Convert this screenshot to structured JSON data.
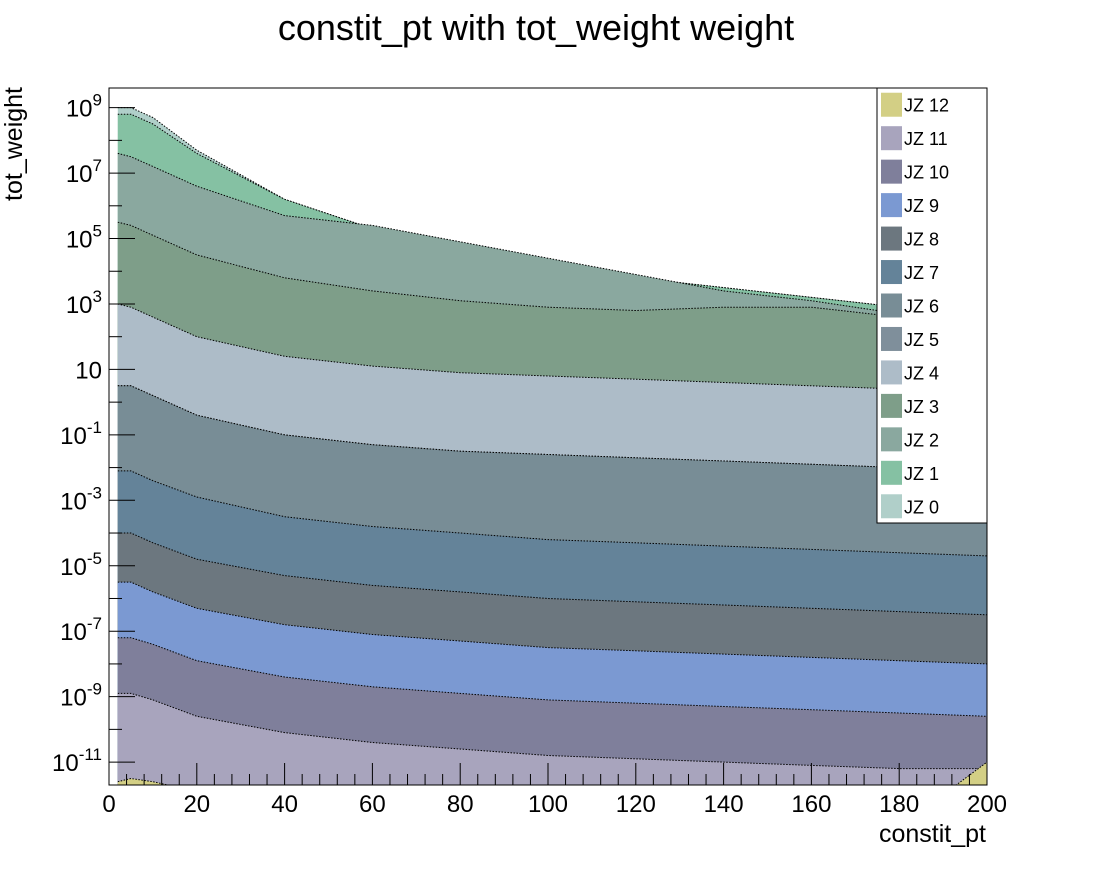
{
  "chart_data": {
    "type": "area",
    "title": "constit_pt with tot_weight weight",
    "xlabel": "constit_pt",
    "ylabel": "tot_weight",
    "xlim": [
      0,
      200
    ],
    "ylim_log10": [
      -11.7,
      9.6
    ],
    "y_scale": "log",
    "stacked": true,
    "grid": false,
    "legend_position": "top-right",
    "x_ticks": [
      0,
      20,
      40,
      60,
      80,
      100,
      120,
      140,
      160,
      180,
      200
    ],
    "y_ticks": [
      {
        "exp": 9,
        "label": "10^9"
      },
      {
        "exp": 7,
        "label": "10^7"
      },
      {
        "exp": 5,
        "label": "10^5"
      },
      {
        "exp": 3,
        "label": "10^3"
      },
      {
        "exp": 1,
        "label": "10"
      },
      {
        "exp": -1,
        "label": "10^-1"
      },
      {
        "exp": -3,
        "label": "10^-3"
      },
      {
        "exp": -5,
        "label": "10^-5"
      },
      {
        "exp": -7,
        "label": "10^-7"
      },
      {
        "exp": -9,
        "label": "10^-9"
      },
      {
        "exp": -11,
        "label": "10^-11"
      }
    ],
    "x": [
      2,
      5,
      10,
      20,
      40,
      60,
      80,
      100,
      120,
      140,
      160,
      180,
      200
    ],
    "series": [
      {
        "name": "JZ 12",
        "color": "#d3cf85",
        "log10_values": [
          -11.6,
          -11.5,
          -11.6,
          -11.9,
          -12.3,
          -12.5,
          -12.6,
          -12.7,
          -12.8,
          -12.9,
          -13.0,
          -13.0,
          -11.0
        ]
      },
      {
        "name": "JZ 11",
        "color": "#a8a4bd",
        "log10_values": [
          -8.9,
          -8.9,
          -9.1,
          -9.6,
          -10.1,
          -10.4,
          -10.6,
          -10.8,
          -10.9,
          -11.0,
          -11.1,
          -11.2,
          -11.2
        ]
      },
      {
        "name": "JZ 10",
        "color": "#7f7f9b",
        "log10_values": [
          -7.2,
          -7.2,
          -7.4,
          -7.9,
          -8.4,
          -8.7,
          -8.9,
          -9.1,
          -9.2,
          -9.3,
          -9.4,
          -9.5,
          -9.6
        ]
      },
      {
        "name": "JZ 9",
        "color": "#7b99d2",
        "log10_values": [
          -5.5,
          -5.5,
          -5.8,
          -6.3,
          -6.8,
          -7.1,
          -7.3,
          -7.5,
          -7.6,
          -7.7,
          -7.8,
          -7.9,
          -8.0
        ]
      },
      {
        "name": "JZ 8",
        "color": "#6c777f",
        "log10_values": [
          -4.0,
          -4.0,
          -4.3,
          -4.8,
          -5.3,
          -5.6,
          -5.8,
          -6.0,
          -6.1,
          -6.2,
          -6.3,
          -6.4,
          -6.5
        ]
      },
      {
        "name": "JZ 7",
        "color": "#648399",
        "log10_values": [
          -2.1,
          -2.1,
          -2.4,
          -2.9,
          -3.5,
          -3.8,
          -4.0,
          -4.2,
          -4.3,
          -4.4,
          -4.5,
          -4.6,
          -4.7
        ]
      },
      {
        "name": "JZ 6",
        "color": "#788d96",
        "log10_values": [
          0.5,
          0.5,
          0.2,
          -0.4,
          -1.0,
          -1.3,
          -1.5,
          -1.6,
          -1.7,
          -1.8,
          -1.9,
          -2.0,
          -2.0
        ]
      },
      {
        "name": "JZ 5",
        "color": "#7f8f9b",
        "log10_values": [
          0.5,
          0.5,
          0.2,
          -0.4,
          -1.0,
          -1.3,
          -1.5,
          -1.6,
          -1.7,
          -1.8,
          -1.9,
          -2.0,
          -2.0
        ]
      },
      {
        "name": "JZ 4",
        "color": "#adbcc8",
        "log10_values": [
          3.0,
          2.9,
          2.6,
          2.0,
          1.4,
          1.1,
          0.9,
          0.8,
          0.7,
          0.6,
          0.5,
          0.4,
          0.3
        ]
      },
      {
        "name": "JZ 3",
        "color": "#7e9e89",
        "log10_values": [
          5.5,
          5.4,
          5.1,
          4.5,
          3.8,
          3.4,
          3.1,
          2.9,
          2.8,
          2.9,
          2.9,
          2.6,
          2.4
        ]
      },
      {
        "name": "JZ 2",
        "color": "#8aa89f",
        "log10_values": [
          7.6,
          7.5,
          7.2,
          6.6,
          5.7,
          5.4,
          4.9,
          4.4,
          3.9,
          3.4,
          3.1,
          2.7,
          2.5
        ]
      },
      {
        "name": "JZ 1",
        "color": "#85c1a3",
        "log10_values": [
          8.8,
          8.8,
          8.5,
          7.6,
          6.2,
          5.3,
          4.7,
          4.2,
          3.8,
          3.5,
          3.2,
          2.9,
          2.6
        ]
      },
      {
        "name": "JZ 0",
        "color": "#b0cfc9",
        "log10_values": [
          9.0,
          9.0,
          8.7,
          7.7,
          6.2,
          5.3,
          4.7,
          4.2,
          3.8,
          3.5,
          3.2,
          2.9,
          2.6
        ]
      }
    ]
  }
}
